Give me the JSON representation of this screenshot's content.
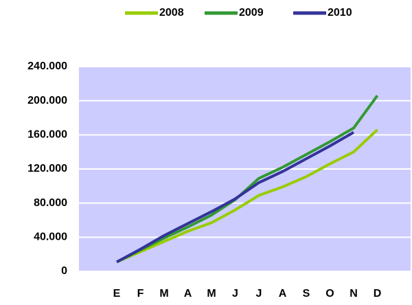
{
  "chart_data": {
    "type": "line",
    "categories": [
      "E",
      "F",
      "M",
      "A",
      "M",
      "J",
      "J",
      "A",
      "S",
      "O",
      "N",
      "D"
    ],
    "series": [
      {
        "name": "2008",
        "color": "#99cc00",
        "values": [
          11000,
          23000,
          35000,
          47000,
          57000,
          72000,
          89000,
          99000,
          111000,
          126000,
          140000,
          166000
        ]
      },
      {
        "name": "2009",
        "color": "#339933",
        "values": [
          11000,
          25000,
          39000,
          52000,
          66000,
          84000,
          109000,
          122000,
          137000,
          152000,
          168000,
          206000
        ]
      },
      {
        "name": "2010",
        "color": "#333399",
        "values": [
          11000,
          26000,
          42000,
          56000,
          70000,
          85000,
          104000,
          117000,
          132000,
          147000,
          163000,
          null
        ]
      }
    ],
    "ylim": [
      0,
      240000
    ],
    "yticks": [
      0,
      {
        "value": 40000,
        "label": "40.000"
      },
      {
        "value": 80000,
        "label": "80.000"
      },
      {
        "value": 120000,
        "label": "120.000"
      },
      {
        "value": 160000,
        "label": "160.000"
      },
      {
        "value": 200000,
        "label": "200.000"
      },
      {
        "value": 240000,
        "label": "240.000"
      }
    ],
    "grid": true,
    "plot_background": "#ccccff",
    "legend": "top"
  }
}
